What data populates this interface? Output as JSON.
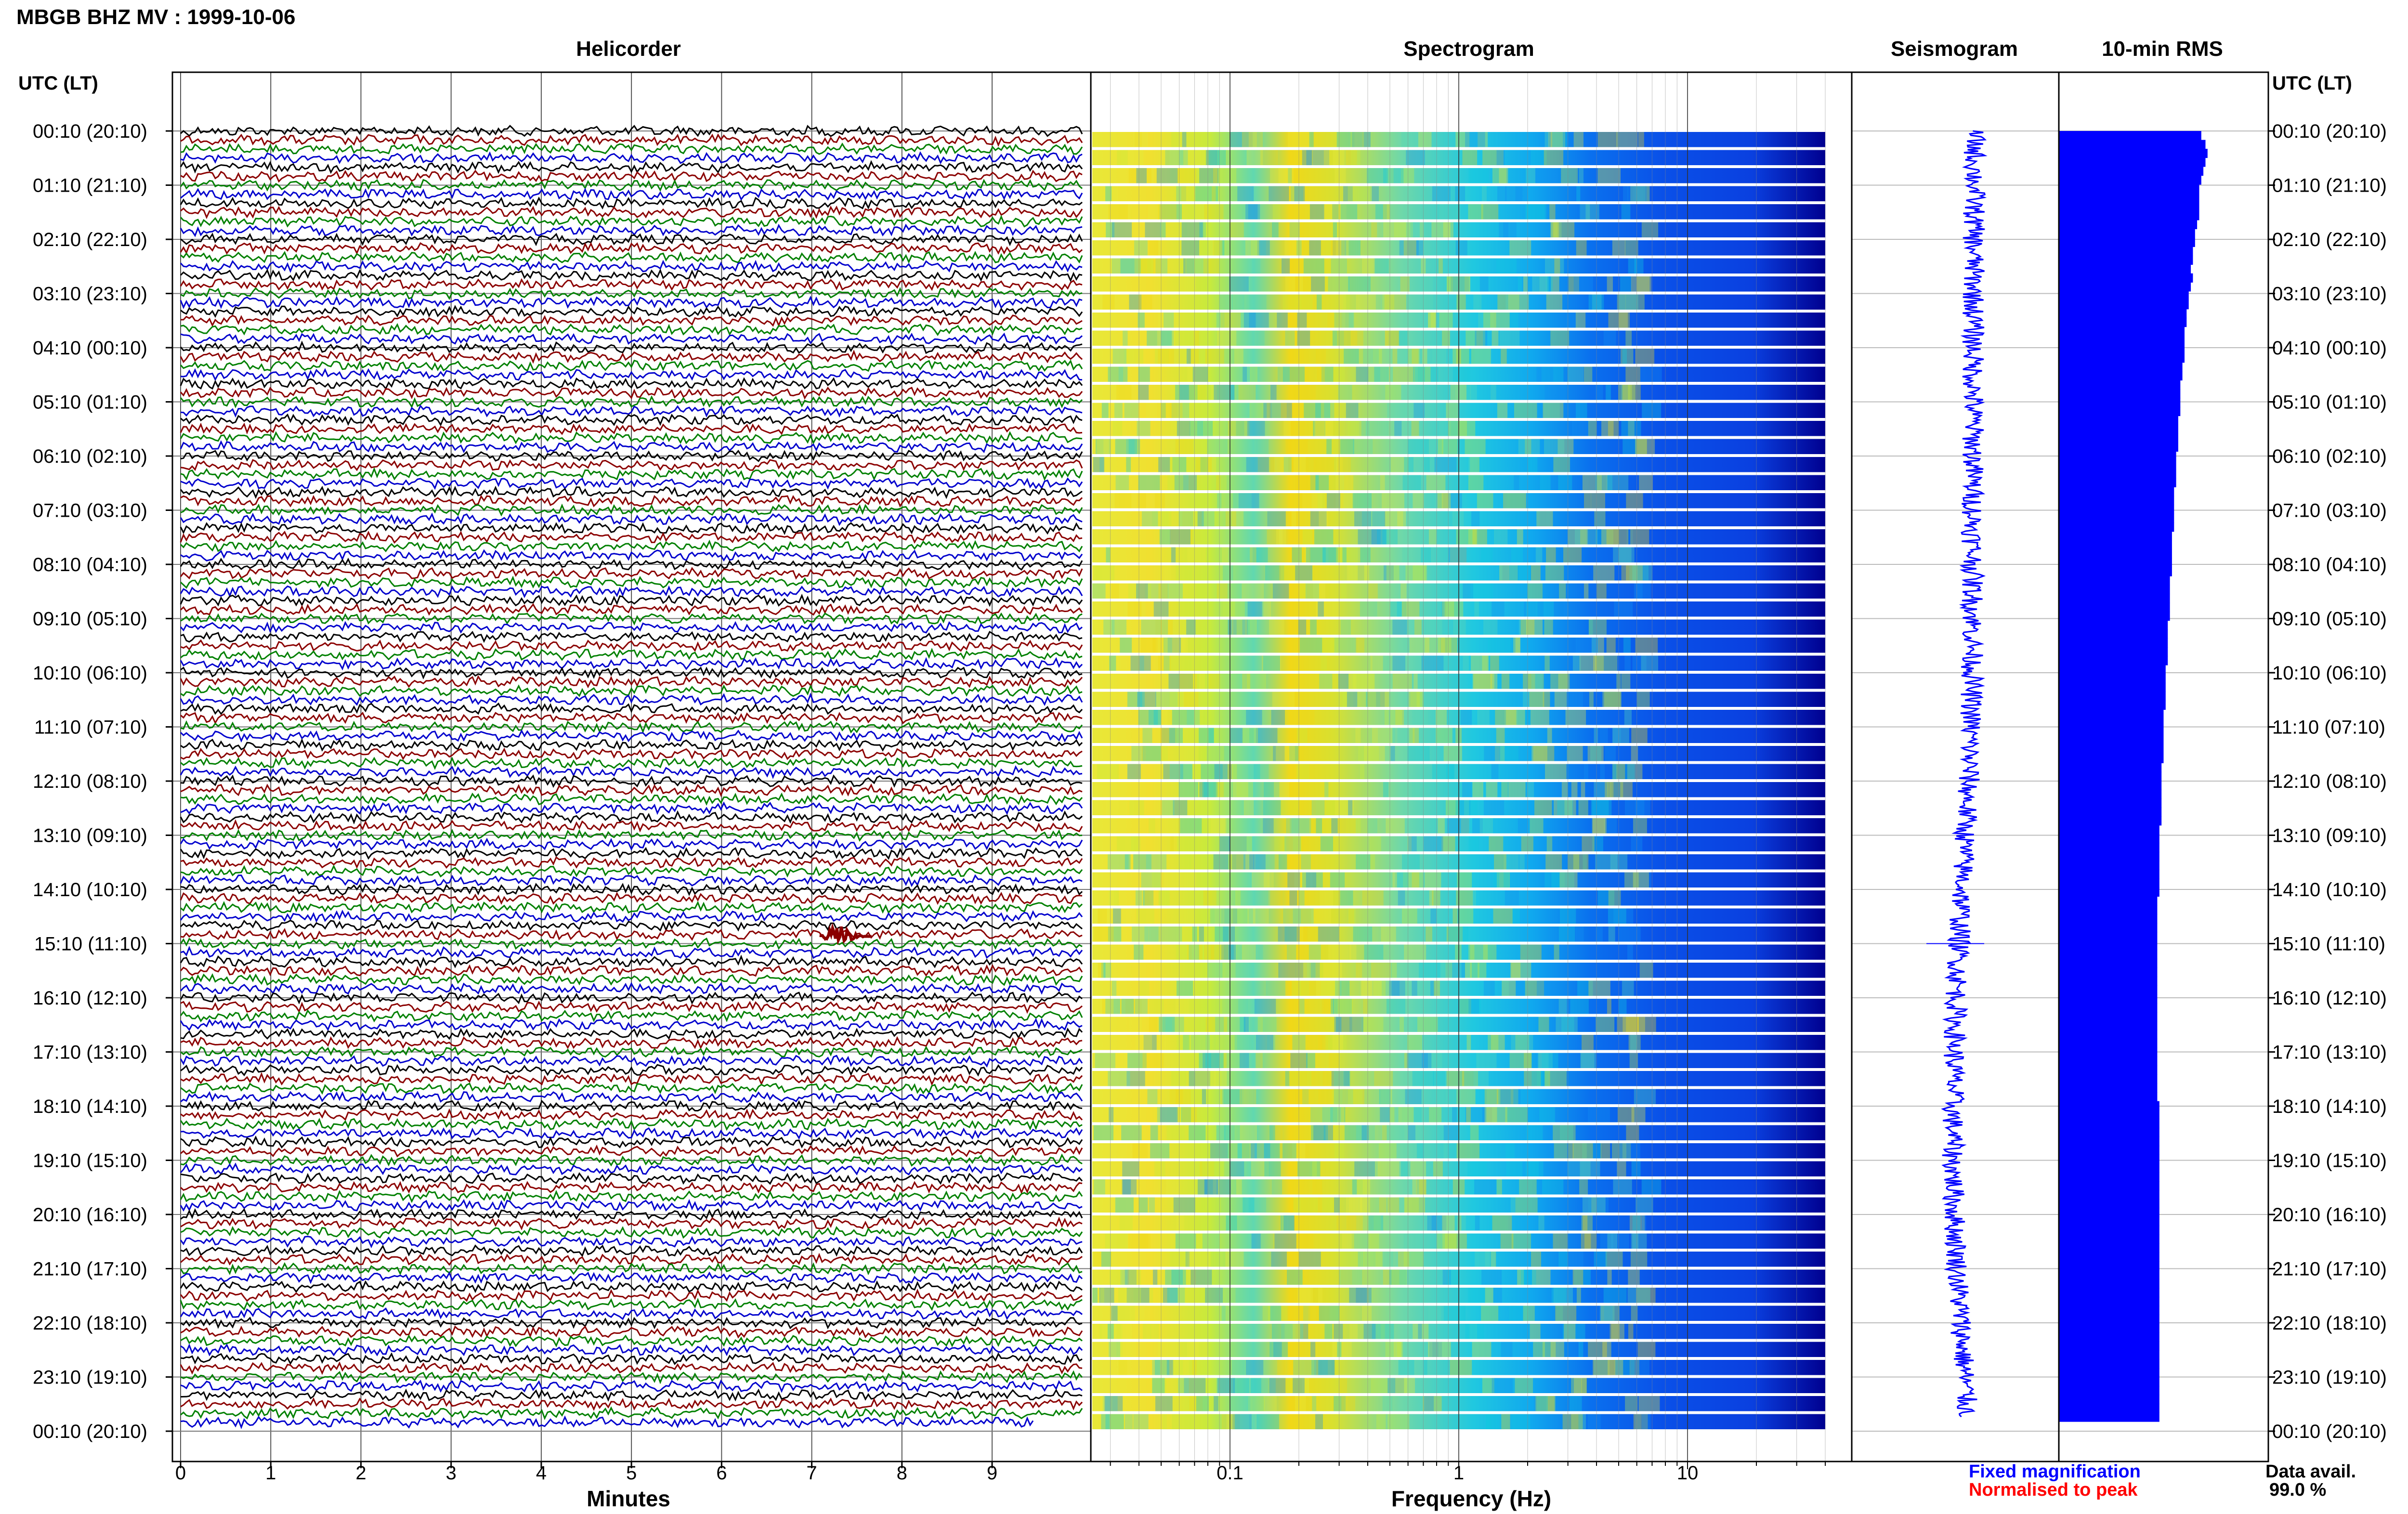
{
  "title": "MBGB BHZ MV : 1999-10-06",
  "panels": {
    "helicorder": "Helicorder",
    "spectrogram": "Spectrogram",
    "seismogram": "Seismogram",
    "rms": "10-min RMS"
  },
  "axis_header": "UTC (LT)",
  "row_labels": [
    "00:10 (20:10)",
    "01:10 (21:10)",
    "02:10 (22:10)",
    "03:10 (23:10)",
    "04:10 (00:10)",
    "05:10 (01:10)",
    "06:10 (02:10)",
    "07:10 (03:10)",
    "08:10 (04:10)",
    "09:10 (05:10)",
    "10:10 (06:10)",
    "11:10 (07:10)",
    "12:10 (08:10)",
    "13:10 (09:10)",
    "14:10 (10:10)",
    "15:10 (11:10)",
    "16:10 (12:10)",
    "17:10 (13:10)",
    "18:10 (14:10)",
    "19:10 (15:10)",
    "20:10 (16:10)",
    "21:10 (17:10)",
    "22:10 (18:10)",
    "23:10 (19:10)",
    "00:10 (20:10)"
  ],
  "footer": {
    "fixed": "Fixed magnification",
    "normalised": "Normalised to peak",
    "avail_label": "Data avail.",
    "avail_value": "99.0 %"
  },
  "colors": {
    "trace_cycle": [
      "#000000",
      "#8b0000",
      "#008000",
      "#0000cd"
    ],
    "blue": "#0000ff",
    "red": "#ff0000",
    "event": "#8b0000",
    "spectrogram_bands": [
      "#e8e838",
      "#c8ea3c",
      "#f0d818",
      "#58d8b8",
      "#10c8e0",
      "#1090f0",
      "#0040e8",
      "#000090"
    ]
  },
  "chart_data": [
    {
      "type": "line",
      "name": "helicorder",
      "xlabel": "Minutes",
      "x_ticks": [
        0,
        1,
        2,
        3,
        4,
        5,
        6,
        7,
        8,
        9
      ],
      "xlim": [
        0,
        10
      ],
      "traces_per_hour": 6,
      "hours": 24,
      "event": {
        "hour_row": 15,
        "minute": 7.3
      }
    },
    {
      "type": "heatmap",
      "name": "spectrogram",
      "xlabel": "Frequency (Hz)",
      "x_scale": "log",
      "x_ticks": [
        0.1,
        1,
        10
      ],
      "x_tick_labels": [
        "0.1",
        "1",
        "10"
      ],
      "xlim": [
        0.025,
        40
      ]
    },
    {
      "type": "line",
      "name": "seismogram",
      "hours": [
        0,
        1,
        2,
        3,
        4,
        5,
        6,
        7,
        8,
        9,
        10,
        11,
        12,
        13,
        14,
        15,
        16,
        17,
        18,
        19,
        20,
        21,
        22,
        23,
        24
      ],
      "envelope_center": [
        0.3,
        0.3,
        0.28,
        0.28,
        0.27,
        0.27,
        0.27,
        0.26,
        0.26,
        0.26,
        0.25,
        0.22,
        0.18,
        0.1,
        0.04,
        -0.02,
        -0.08,
        -0.12,
        -0.15,
        -0.15,
        -0.12,
        -0.06,
        0.02,
        0.1,
        0.16
      ]
    },
    {
      "type": "bar",
      "name": "rms",
      "orientation": "horizontal",
      "xlim": [
        0,
        1
      ],
      "values": [
        0.68,
        0.7,
        0.71,
        0.7,
        0.69,
        0.68,
        0.67,
        0.67,
        0.67,
        0.67,
        0.66,
        0.65,
        0.65,
        0.64,
        0.64,
        0.63,
        0.64,
        0.63,
        0.62,
        0.62,
        0.61,
        0.61,
        0.6,
        0.6,
        0.6,
        0.6,
        0.59,
        0.59,
        0.58,
        0.58,
        0.58,
        0.58,
        0.57,
        0.57,
        0.57,
        0.57,
        0.56,
        0.56,
        0.56,
        0.56,
        0.55,
        0.55,
        0.55,
        0.55,
        0.55,
        0.54,
        0.54,
        0.54,
        0.54,
        0.54,
        0.53,
        0.53,
        0.53,
        0.53,
        0.53,
        0.52,
        0.52,
        0.52,
        0.52,
        0.52,
        0.51,
        0.51,
        0.51,
        0.51,
        0.51,
        0.5,
        0.5,
        0.5,
        0.5,
        0.5,
        0.5,
        0.49,
        0.49,
        0.49,
        0.49,
        0.49,
        0.49,
        0.49,
        0.48,
        0.48,
        0.48,
        0.48,
        0.48,
        0.48,
        0.48,
        0.48,
        0.47,
        0.47,
        0.47,
        0.47,
        0.47,
        0.47,
        0.47,
        0.47,
        0.47,
        0.47,
        0.47,
        0.47,
        0.47,
        0.47,
        0.47,
        0.47,
        0.47,
        0.47,
        0.47,
        0.47,
        0.47,
        0.47,
        0.47,
        0.48,
        0.48,
        0.48,
        0.48,
        0.48,
        0.48,
        0.48,
        0.48,
        0.48,
        0.48,
        0.48,
        0.48,
        0.48,
        0.48,
        0.48,
        0.48,
        0.48,
        0.48,
        0.48,
        0.48,
        0.48,
        0.48,
        0.48,
        0.48,
        0.48,
        0.48,
        0.48,
        0.48,
        0.48,
        0.48,
        0.48,
        0.48,
        0.48,
        0.48,
        0.48,
        0.48
      ]
    }
  ]
}
